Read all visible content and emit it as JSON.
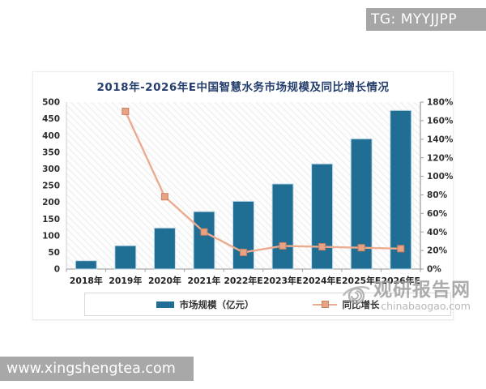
{
  "overlays": {
    "tg_badge": "TG: MYYJJPP",
    "site_bar": "www.xingshengtea.com",
    "watermark": {
      "brand": "观研报告网",
      "domain": "chinabaogao.com"
    }
  },
  "chart_data": {
    "type": "bar+line",
    "title": "2018年-2026年E中国智慧水务市场规模及同比增长情况",
    "categories": [
      "2018年",
      "2019年",
      "2020年",
      "2021年",
      "2022年E",
      "2023年E",
      "2024年E",
      "2025年E",
      "2026年E"
    ],
    "series": [
      {
        "name": "市场规模（亿元）",
        "type": "bar",
        "axis": "left",
        "unit": "亿元",
        "color": "#216e94",
        "edge_color": "#c3dcea",
        "values": [
          25,
          70,
          123,
          172,
          203,
          255,
          315,
          390,
          475
        ]
      },
      {
        "name": "同比增长",
        "type": "line",
        "axis": "right",
        "unit": "%",
        "color": "#ecab8f",
        "marker_color": "#e8a284",
        "marker_border": "#c9825f",
        "values": [
          null,
          170,
          78,
          40,
          18,
          25,
          24,
          23,
          22
        ]
      }
    ],
    "left_axis": {
      "min": 0,
      "max": 500,
      "step": 50,
      "labels": [
        "500",
        "450",
        "400",
        "350",
        "300",
        "250",
        "200",
        "150",
        "100",
        "50",
        "0"
      ]
    },
    "right_axis": {
      "min": 0,
      "max": 180,
      "step": 20,
      "labels": [
        "180%",
        "160%",
        "140%",
        "120%",
        "100%",
        "80%",
        "60%",
        "40%",
        "20%",
        "0%"
      ]
    },
    "legend_position": "bottom",
    "grid": false,
    "plot_hatch": true
  }
}
